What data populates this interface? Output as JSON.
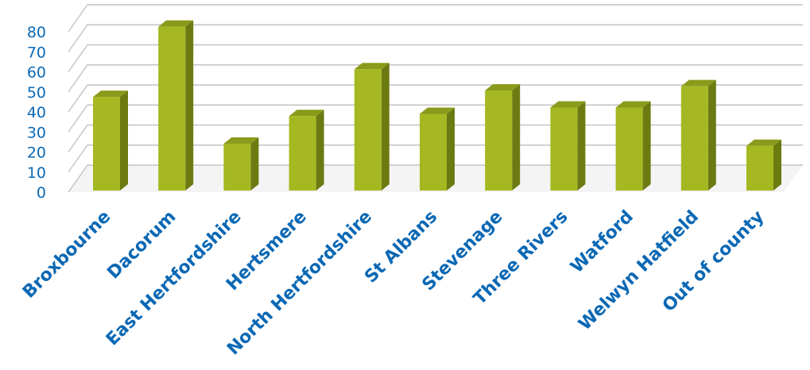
{
  "chart_data": {
    "type": "bar",
    "style": "3d-column",
    "categories": [
      "Broxbourne",
      "Dacorum",
      "East Hertfordshire",
      "Hertsmere",
      "North Hertfordshire",
      "St Albans",
      "Stevenage",
      "Three Rivers",
      "Watford",
      "Welwyn Hatfield",
      "Out of county"
    ],
    "values": [
      44,
      77,
      22,
      35,
      57,
      36,
      47,
      39,
      39,
      49,
      21
    ],
    "ylim": [
      0,
      80
    ],
    "yticks": [
      0,
      10,
      20,
      30,
      40,
      50,
      60,
      70,
      80
    ],
    "grid": true,
    "legend": "none",
    "colors": {
      "bar_front": "#a5b822",
      "bar_side": "#6c7a12",
      "bar_top": "#8a9a1a",
      "grid": "#c3c3c3",
      "labels": "#0b68b4"
    }
  }
}
